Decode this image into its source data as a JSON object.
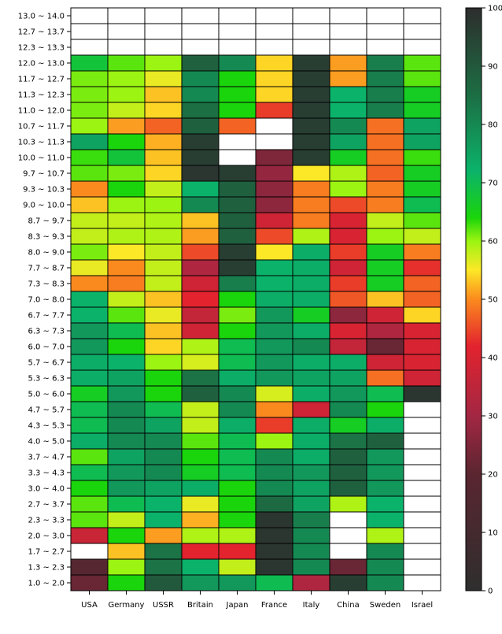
{
  "chart_data": {
    "type": "heatmap",
    "columns": [
      "USA",
      "Germany",
      "USSR",
      "Britain",
      "Japan",
      "France",
      "Italy",
      "China",
      "Sweden",
      "Israel"
    ],
    "rows": [
      "13.0 ~ 14.0",
      "12.7 ~ 13.7",
      "12.3 ~ 13.3",
      "12.0 ~ 13.0",
      "11.7 ~ 12.7",
      "11.3 ~ 12.3",
      "11.0 ~ 12.0",
      "10.7 ~ 11.7",
      "10.3 ~ 11.3",
      "10.0 ~ 11.0",
      "9.7 ~ 10.7",
      "9.3 ~ 10.3",
      "9.0 ~ 10.0",
      "8.7 ~ 9.7",
      "8.3 ~ 9.3",
      "8.0 ~ 9.0",
      "7.7 ~ 8.7",
      "7.3 ~ 8.3",
      "7.0 ~ 8.0",
      "6.7 ~ 7.7",
      "6.3 ~ 7.3",
      "6.0 ~ 7.0",
      "5.7 ~ 6.7",
      "5.3 ~ 6.3",
      "5.0 ~ 6.0",
      "4.7 ~ 5.7",
      "4.3 ~ 5.3",
      "4.0 ~ 5.0",
      "3.7 ~ 4.7",
      "3.3 ~ 4.3",
      "3.0 ~ 4.0",
      "2.7 ~ 3.7",
      "2.3 ~ 3.3",
      "2.0 ~ 3.0",
      "1.7 ~ 2.7",
      "1.3 ~ 2.3",
      "1.0 ~ 2.0"
    ],
    "values": [
      [
        null,
        null,
        null,
        null,
        null,
        null,
        null,
        null,
        null,
        null
      ],
      [
        null,
        null,
        null,
        null,
        null,
        null,
        null,
        null,
        null,
        null
      ],
      [
        null,
        null,
        null,
        null,
        null,
        null,
        null,
        null,
        null,
        null
      ],
      [
        68,
        62,
        60,
        88,
        80,
        54,
        96,
        51,
        82,
        62
      ],
      [
        61,
        60,
        56,
        80,
        64,
        54,
        96,
        51,
        82,
        62
      ],
      [
        61,
        60,
        53,
        80,
        64,
        54,
        96,
        72,
        82,
        66
      ],
      [
        61,
        58,
        54,
        85,
        64,
        44,
        96,
        72,
        82,
        66
      ],
      [
        60,
        51,
        47,
        88,
        47,
        null,
        96,
        80,
        48,
        75
      ],
      [
        75,
        64,
        52,
        96,
        null,
        null,
        96,
        75,
        48,
        75
      ],
      [
        63,
        68,
        53,
        96,
        null,
        25,
        96,
        66,
        48,
        63
      ],
      [
        62,
        61,
        54,
        98,
        96,
        28,
        55,
        59,
        47,
        66
      ],
      [
        50,
        64,
        58,
        72,
        88,
        27,
        49,
        60,
        49,
        66
      ],
      [
        53,
        60,
        60,
        80,
        88,
        27,
        49,
        45,
        49,
        70
      ],
      [
        58,
        58,
        59,
        53,
        88,
        38,
        49,
        40,
        58,
        62
      ],
      [
        58,
        59,
        59,
        51,
        88,
        45,
        59,
        40,
        60,
        58
      ],
      [
        61,
        55,
        58,
        45,
        96,
        55,
        73,
        44,
        66,
        49
      ],
      [
        56,
        50,
        58,
        32,
        96,
        72,
        73,
        38,
        66,
        43
      ],
      [
        50,
        49,
        58,
        38,
        82,
        72,
        73,
        44,
        66,
        47
      ],
      [
        72,
        58,
        53,
        42,
        64,
        73,
        73,
        46,
        53,
        47
      ],
      [
        72,
        62,
        56,
        36,
        61,
        77,
        66,
        27,
        38,
        54
      ],
      [
        77,
        70,
        53,
        38,
        64,
        77,
        73,
        40,
        32,
        40
      ],
      [
        77,
        64,
        54,
        59,
        70,
        77,
        80,
        36,
        22,
        40
      ],
      [
        73,
        72,
        60,
        57,
        70,
        77,
        73,
        73,
        38,
        40
      ],
      [
        73,
        75,
        64,
        84,
        73,
        77,
        75,
        75,
        48,
        38
      ],
      [
        66,
        77,
        64,
        88,
        80,
        57,
        73,
        77,
        70,
        98
      ],
      [
        70,
        80,
        70,
        58,
        80,
        50,
        38,
        80,
        64,
        null
      ],
      [
        70,
        80,
        75,
        58,
        73,
        44,
        73,
        66,
        73,
        null
      ],
      [
        73,
        80,
        80,
        62,
        70,
        60,
        73,
        84,
        88,
        null
      ],
      [
        62,
        75,
        80,
        64,
        70,
        80,
        73,
        88,
        77,
        null
      ],
      [
        70,
        77,
        80,
        66,
        70,
        80,
        77,
        88,
        77,
        null
      ],
      [
        64,
        77,
        75,
        73,
        64,
        80,
        75,
        88,
        77,
        null
      ],
      [
        62,
        70,
        72,
        56,
        64,
        86,
        75,
        59,
        72,
        null
      ],
      [
        62,
        58,
        72,
        52,
        64,
        98,
        82,
        null,
        72,
        null
      ],
      [
        37,
        64,
        51,
        59,
        59,
        98,
        80,
        null,
        59,
        null
      ],
      [
        null,
        53,
        84,
        42,
        42,
        98,
        80,
        null,
        80,
        null
      ],
      [
        18,
        60,
        84,
        72,
        58,
        98,
        80,
        22,
        80,
        null
      ],
      [
        22,
        64,
        90,
        77,
        77,
        70,
        32,
        96,
        80,
        null
      ]
    ],
    "colorbar": {
      "min": 0,
      "max": 100,
      "ticks": [
        0,
        10,
        20,
        30,
        40,
        50,
        60,
        70,
        80,
        90,
        100
      ],
      "stops": [
        {
          "v": 0,
          "c": "#2e2e2e"
        },
        {
          "v": 20,
          "c": "#5a2630"
        },
        {
          "v": 30,
          "c": "#a32743"
        },
        {
          "v": 42,
          "c": "#e3232e"
        },
        {
          "v": 50,
          "c": "#fb8a1e"
        },
        {
          "v": 55,
          "c": "#fde827"
        },
        {
          "v": 60,
          "c": "#9bf411"
        },
        {
          "v": 64,
          "c": "#1ad50b"
        },
        {
          "v": 72,
          "c": "#0bb36a"
        },
        {
          "v": 85,
          "c": "#1c6e43"
        },
        {
          "v": 100,
          "c": "#2d2d2d"
        }
      ]
    },
    "empty_color": "#ffffff",
    "title": "",
    "xlabel": "",
    "ylabel": ""
  }
}
